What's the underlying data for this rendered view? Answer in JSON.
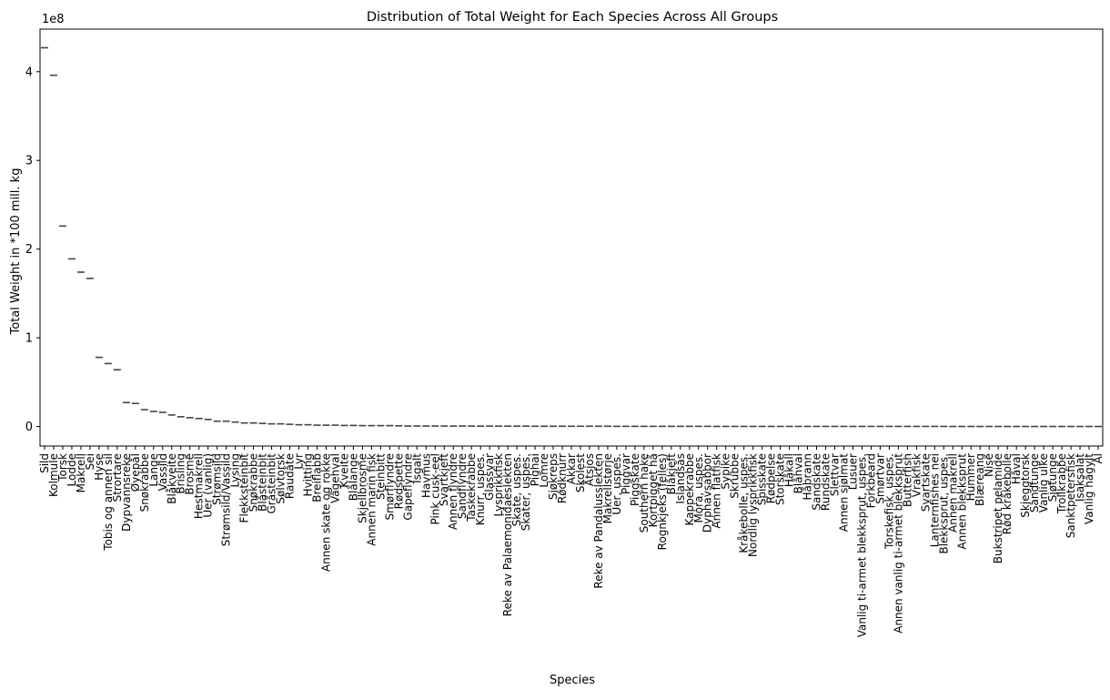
{
  "chart_data": {
    "type": "box",
    "title": "Distribution of Total Weight for Each Species Across All Groups",
    "xlabel": "Species",
    "ylabel": "Total Weight in *100 mill. kg",
    "offset_label": "1e8",
    "ylim": [
      -0.22,
      4.48
    ],
    "yticks": [
      0,
      1,
      2,
      3,
      4
    ],
    "ytick_labels": [
      "0",
      "1",
      "2",
      "3",
      "4"
    ],
    "box_color": "#444444",
    "axis_color": "#000000",
    "categories": [
      "Sild",
      "Kolmule",
      "Torsk",
      "Lodde",
      "Makrell",
      "Sei",
      "Hyse",
      "Tobis og annen sil",
      "Strortare",
      "Dypvannsreke",
      "Øyepål",
      "Snøkrabbe",
      "Lange",
      "Vassild",
      "Blåkveite",
      "Brisling",
      "Brosme",
      "Hestmakrell",
      "Uer (vanlig)",
      "Strømsild",
      "Strømsild/Vassild",
      "Lysing",
      "Flekksteinbit",
      "Snøkrabbe",
      "Blåsteinbit",
      "Gråsteinbit",
      "Sølvtorsk",
      "Raudåte",
      "Lyr",
      "Hvitting",
      "Breiflabb",
      "Annen skate og rokke",
      "Vågehval",
      "Kveite",
      "Blålange",
      "Skjellbrosme",
      "Annen marin fisk",
      "Steinbitt",
      "Smørflyndre",
      "Rødspette",
      "Gapeflyndre",
      "Isgalt",
      "Havmus",
      "Pink cusk-eel",
      "Svartkjeft",
      "Annen flyndre",
      "Sandflyndre",
      "Taskekrabbe",
      "Knurr, uspes.",
      "Glassvar",
      "Lysprikkfisk",
      "Reke av Palaemonidaeslekten",
      "Skate, uspes.",
      "Skater, uspes.",
      "Pighai",
      "Lomre",
      "Sjøkreps",
      "Rødknurr",
      "Akkar",
      "Skolest",
      "Åtsjos",
      "Reke av Pandalusslekten",
      "Makrellstørje",
      "Uer, uspes.",
      "Piggvar",
      "Piggskate",
      "Southern hake",
      "Kortpigget hå",
      "Rognkjeks (felles)",
      "Blåkjeft",
      "Islandsås",
      "Kappekrabbe",
      "Mora, uspes.",
      "Dyphavsabbor",
      "Annen flatfisk",
      "Sypike",
      "Skrubbe",
      "Kråkebolle, uspes.",
      "Nordlig lysprikkfisk",
      "Spisskate",
      "Rødpelse",
      "Storskate",
      "Håkall",
      "Blåhval",
      "Håbrann",
      "Sandskate",
      "Rundskate",
      "Slettvar",
      "Annen sjølmat",
      "Lusuer",
      "Vanlig ti-armet blekksprut, uspes.",
      "Forkbeard",
      "Smørtvar",
      "Torskefisk, uspes.",
      "Annen vanlig ti-armet blekksprut",
      "Butterfish",
      "Vrakfisk",
      "Svartskate",
      "Lanternfishes nei",
      "Blekksprut, uspes.",
      "Annen makrell",
      "Annen blekksprut",
      "Hummer",
      "Blæreang",
      "Nise",
      "Bukstripet pelamide",
      "Rød kråkebolle",
      "Håval",
      "Skjeggtorsk",
      "Sandtunge",
      "Vanlig ulke",
      "Sjøtunge",
      "Trollkrabbe",
      "Sanktpetersfisk",
      "Isaksalat",
      "Vanlig hågylt",
      "Ål"
    ],
    "values": [
      4.27,
      3.96,
      2.26,
      1.89,
      1.74,
      1.67,
      0.78,
      0.71,
      0.64,
      0.27,
      0.26,
      0.19,
      0.17,
      0.16,
      0.13,
      0.11,
      0.1,
      0.09,
      0.08,
      0.06,
      0.06,
      0.05,
      0.04,
      0.04,
      0.035,
      0.03,
      0.03,
      0.025,
      0.02,
      0.02,
      0.015,
      0.015,
      0.015,
      0.012,
      0.012,
      0.01,
      0.01,
      0.01,
      0.01,
      0.008,
      0.005,
      0.005,
      0.005,
      0.005,
      0.005,
      0.005,
      0.005,
      0.005,
      0.004,
      0.004,
      0.004,
      0.004,
      0.004,
      0.004,
      0.003,
      0.003,
      0.003,
      0.003,
      0.003,
      0.003,
      0.003,
      0.003,
      0.003,
      0.002,
      0.002,
      0.002,
      0.002,
      0.002,
      0.002,
      0.002,
      0.002,
      0.002,
      0.002,
      0.002,
      0.001,
      0.001,
      0.001,
      0.001,
      0.001,
      0.001,
      0.001,
      0.001,
      0.001,
      0.001,
      0.001,
      0.001,
      0.001,
      0.001,
      0.001,
      0.001,
      0.001,
      0.001,
      0.001,
      0.001,
      0.001,
      0.001,
      0.001,
      0.001,
      0.001,
      0.001,
      0.0005,
      0.0005,
      0.0005,
      0.0005,
      0.0005,
      0.0005,
      0.0005,
      0.0005,
      0.0005,
      0.0005,
      0.0005,
      0.0005,
      0.0005,
      0.0005,
      0.0005,
      0.0005,
      0.0005
    ]
  }
}
